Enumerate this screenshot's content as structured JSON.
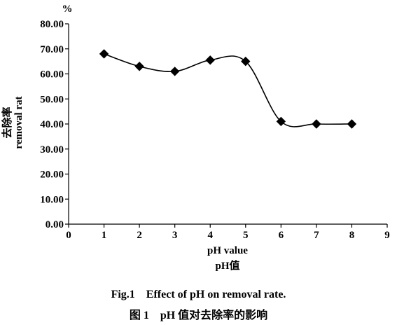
{
  "chart_data": {
    "type": "line",
    "y_unit": "%",
    "xlabel": "pH value",
    "xlabel_cn": "pH值",
    "ylabel": "removal rat",
    "ylabel_cn": "去除率",
    "xlim": [
      0,
      9
    ],
    "ylim": [
      0,
      80
    ],
    "x_ticks": [
      "0",
      "1",
      "2",
      "3",
      "4",
      "5",
      "6",
      "7",
      "8",
      "9"
    ],
    "y_ticks": [
      "0.00",
      "10.00",
      "20.00",
      "30.00",
      "40.00",
      "50.00",
      "60.00",
      "70.00",
      "80.00"
    ],
    "grid": false,
    "legend": "none",
    "smooth": true,
    "marker": "diamond",
    "color": "#000000",
    "series": [
      {
        "x": [
          1,
          2,
          3,
          4,
          5,
          6,
          7,
          8
        ],
        "values": [
          68.0,
          63.0,
          61.0,
          65.5,
          65.0,
          41.0,
          40.0,
          40.0
        ]
      }
    ]
  },
  "caption_en": "Fig.1    Effect of pH on removal rate.",
  "caption_cn": "图 1    pH 值对去除率的影响"
}
